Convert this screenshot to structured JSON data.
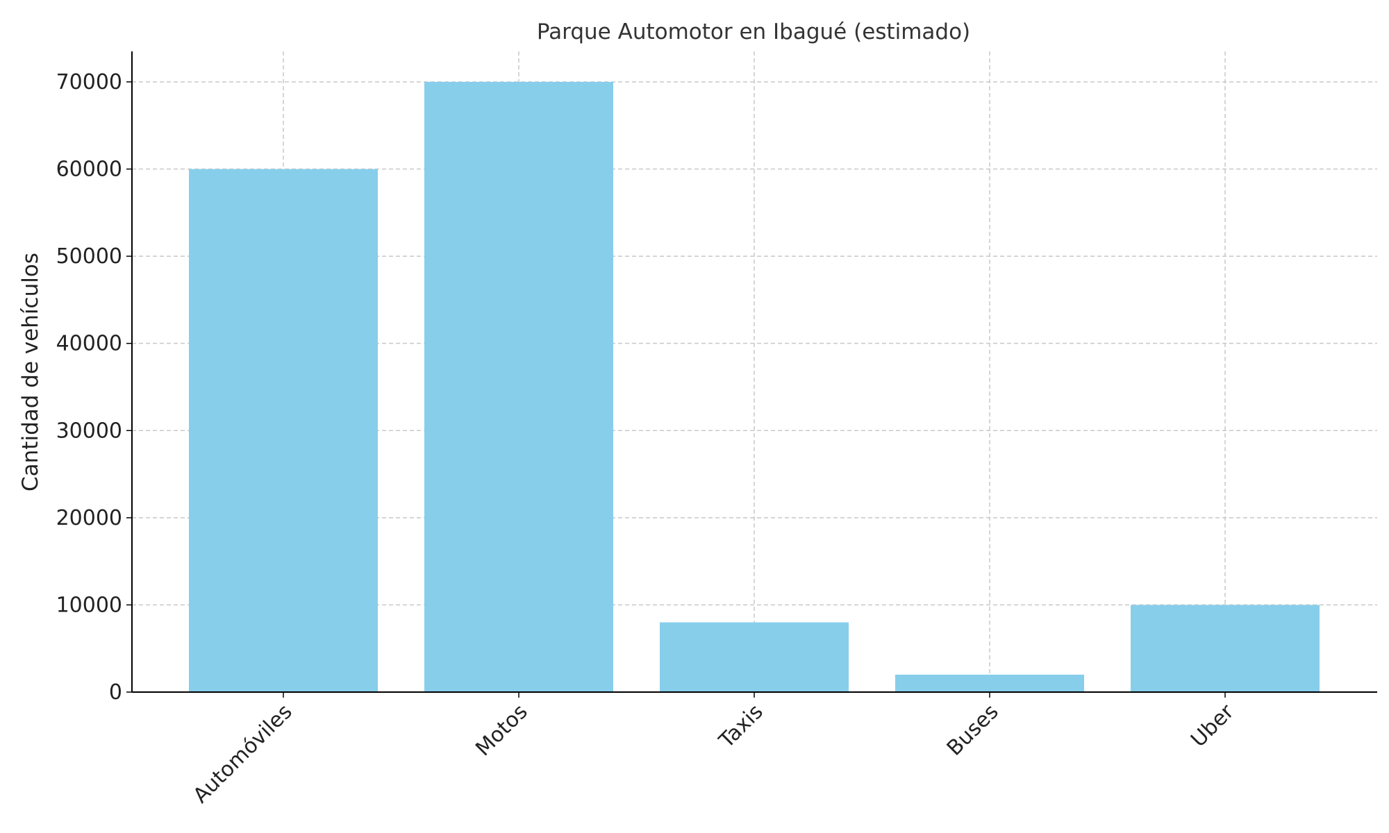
{
  "chart_data": {
    "type": "bar",
    "title": "Parque Automotor en Ibagué (estimado)",
    "xlabel": "",
    "ylabel": "Cantidad de vehículos",
    "categories": [
      "Automóviles",
      "Motos",
      "Taxis",
      "Buses",
      "Uber"
    ],
    "values": [
      60000,
      70000,
      8000,
      2000,
      10000
    ],
    "ylim": [
      0,
      73500
    ],
    "yticks": [
      0,
      10000,
      20000,
      30000,
      40000,
      50000,
      60000,
      70000
    ],
    "ytick_labels": [
      "0",
      "10000",
      "20000",
      "30000",
      "40000",
      "50000",
      "60000",
      "70000"
    ],
    "bar_color": "#87ceeb",
    "grid": true
  }
}
